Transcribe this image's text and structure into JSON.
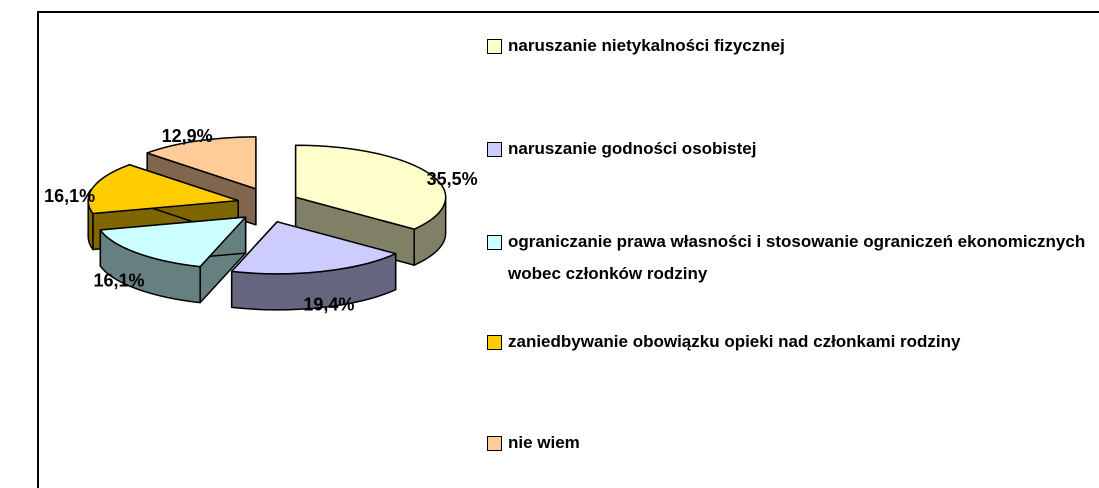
{
  "chart_data": {
    "type": "pie",
    "categories": [
      "naruszanie nietykalności fizycznej",
      "naruszanie godności osobistej",
      "ograniczanie prawa własności i stosowanie ograniczeń ekonomicznych wobec członków rodziny",
      "zaniedbywanie obowiązku opieki nad członkami rodziny",
      "nie wiem"
    ],
    "values": [
      35.5,
      19.4,
      16.1,
      16.1,
      12.9
    ],
    "value_labels": [
      "35,5%",
      "19,4%",
      "16,1%",
      "16,1%",
      "12,9%"
    ],
    "colors": [
      "#ffffcc",
      "#ccccff",
      "#ccffff",
      "#ffcc00",
      "#ffcc99"
    ],
    "legend": "right"
  }
}
